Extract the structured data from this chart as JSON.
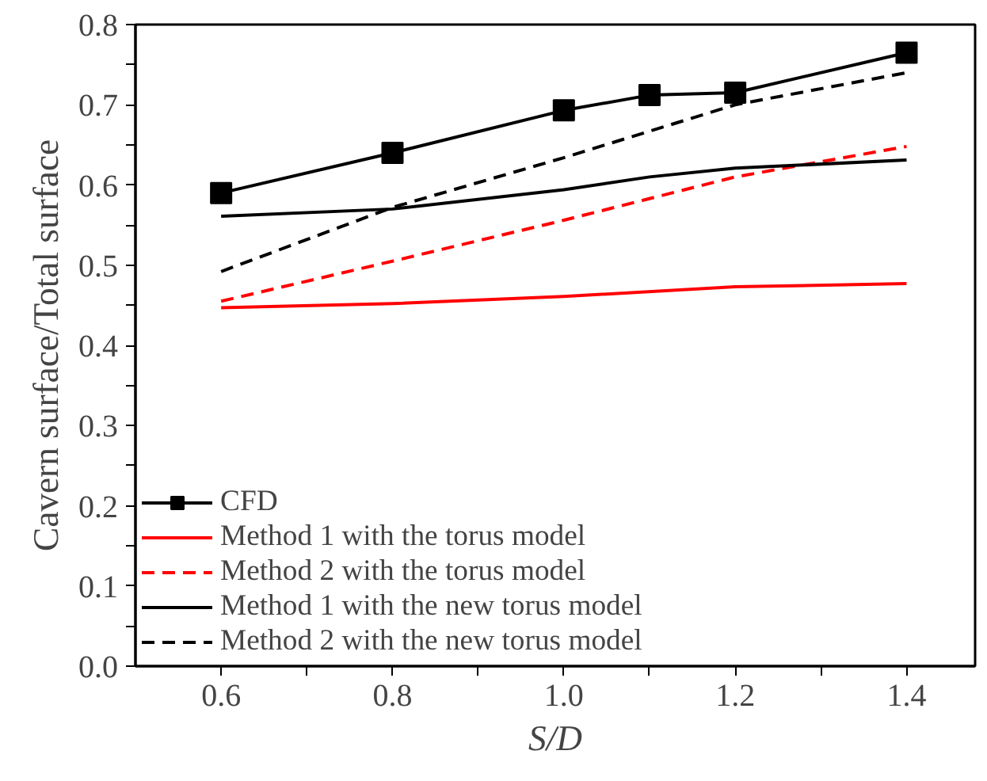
{
  "chart_data": {
    "type": "line",
    "xlabel": "S/D",
    "ylabel": "Cavern surface/Total surface",
    "xlim": [
      0.5,
      1.48
    ],
    "ylim": [
      0.0,
      0.8
    ],
    "xticks": [
      0.6,
      {
        "value": 0.7,
        "label": null
      },
      0.8,
      {
        "value": 0.9,
        "label": null
      },
      {
        "value": 1.0,
        "label": "1.0"
      },
      {
        "value": 1.1,
        "label": null
      },
      1.2,
      {
        "value": 1.3,
        "label": null
      },
      1.4
    ],
    "yticks": [
      {
        "value": 0.0,
        "label": "0.0"
      },
      {
        "value": 0.05,
        "label": null
      },
      0.1,
      {
        "value": 0.15,
        "label": null
      },
      0.2,
      {
        "value": 0.25,
        "label": null
      },
      0.3,
      {
        "value": 0.35,
        "label": null
      },
      0.4,
      {
        "value": 0.45,
        "label": null
      },
      0.5,
      {
        "value": 0.55,
        "label": null
      },
      0.6,
      {
        "value": 0.65,
        "label": null
      },
      0.7,
      {
        "value": 0.75,
        "label": null
      },
      0.8
    ],
    "grid": false,
    "legend": "bottom left",
    "series": [
      {
        "name": "CFD",
        "color": "#000000",
        "marker": "square",
        "line_style": "solid",
        "x": [
          0.6,
          0.8,
          1.0,
          1.1,
          1.2,
          1.4
        ],
        "values": [
          0.59,
          0.64,
          0.693,
          0.712,
          0.715,
          0.765
        ]
      },
      {
        "name": "Method 1 with the torus model",
        "color": "#ff0000",
        "marker": "none",
        "line_style": "solid",
        "x": [
          0.6,
          0.8,
          1.0,
          1.2,
          1.4
        ],
        "values": [
          0.447,
          0.452,
          0.461,
          0.473,
          0.477
        ]
      },
      {
        "name": "Method 2 with the torus model",
        "color": "#ff0000",
        "marker": "none",
        "line_style": "dashed",
        "x": [
          0.6,
          0.8,
          1.0,
          1.2,
          1.4
        ],
        "values": [
          0.455,
          0.505,
          0.556,
          0.61,
          0.648
        ]
      },
      {
        "name": "Method 1 with the new torus model",
        "color": "#000000",
        "marker": "none",
        "line_style": "solid",
        "x": [
          0.6,
          0.8,
          1.0,
          1.1,
          1.2,
          1.4
        ],
        "values": [
          0.561,
          0.57,
          0.594,
          0.61,
          0.621,
          0.631
        ]
      },
      {
        "name": "Method 2 with the new torus model",
        "color": "#000000",
        "marker": "none",
        "line_style": "dashed",
        "x": [
          0.6,
          0.8,
          1.0,
          1.2,
          1.4
        ],
        "values": [
          0.492,
          0.572,
          0.634,
          0.7,
          0.74
        ]
      }
    ]
  }
}
